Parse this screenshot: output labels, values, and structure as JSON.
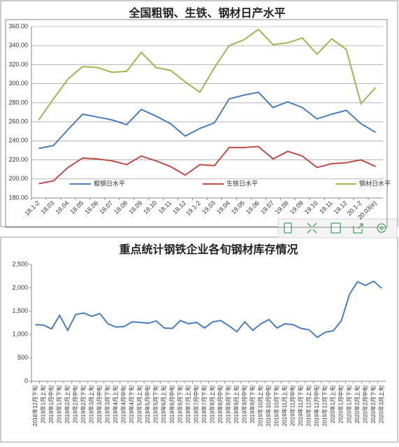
{
  "chart_data": [
    {
      "type": "line",
      "title": "全国粗钢、生铁、钢材日产水平",
      "categories": [
        "18.1-2",
        "18.03",
        "18.04",
        "18.05",
        "18.06",
        "18.07",
        "18.08",
        "18.09",
        "18.10",
        "18.11",
        "18.12",
        "19.1-2",
        "19.03",
        "19.04",
        "19.05",
        "19.06",
        "19.07",
        "19.08",
        "19.09",
        "19.10",
        "19.11",
        "19.12",
        "20.1-2",
        "20.03(e)"
      ],
      "series": [
        {
          "name": "粗钢日水平",
          "color": "#4a7ebb",
          "values": [
            232,
            235,
            252,
            268,
            265,
            262,
            257,
            273,
            266,
            258,
            245,
            253,
            259,
            284,
            288,
            291,
            275,
            281,
            275,
            263,
            268,
            272,
            258,
            249
          ]
        },
        {
          "name": "生铁日水平",
          "color": "#be4b48",
          "values": [
            195,
            198,
            212,
            222,
            221,
            219,
            215,
            224,
            219,
            213,
            204,
            215,
            214,
            233,
            233,
            234,
            221,
            229,
            224,
            212,
            216,
            217,
            220,
            213
          ]
        },
        {
          "name": "钢材日水平",
          "color": "#98b954",
          "values": [
            262,
            284,
            305,
            318,
            317,
            312,
            313,
            333,
            317,
            314,
            302,
            291,
            317,
            340,
            346,
            357,
            341,
            343,
            348,
            331,
            347,
            336,
            279,
            296
          ]
        }
      ],
      "ylim": [
        180,
        360
      ],
      "yticks": [
        {
          "value": 180,
          "label": "180.00"
        },
        {
          "value": 200,
          "label": "200.00"
        },
        {
          "value": 220,
          "label": "220.00"
        },
        {
          "value": 240,
          "label": "240.00"
        },
        {
          "value": 260,
          "label": "260.00"
        },
        {
          "value": 280,
          "label": "280.00"
        },
        {
          "value": 300,
          "label": "300.00"
        },
        {
          "value": 320,
          "label": "320.00"
        },
        {
          "value": 340,
          "label": "340.00"
        },
        {
          "value": 360,
          "label": "360.00"
        }
      ],
      "grid": true,
      "legend": "bottom"
    },
    {
      "type": "line",
      "title": "重点统计钢铁企业各旬钢材库存情况",
      "categories": [
        "2018年12月下旬",
        "2019年1月上旬",
        "2019年1月中旬",
        "2019年1月下旬",
        "2019年2月上旬",
        "2019年2月中旬",
        "2019年2月下旬",
        "2019年3月上旬",
        "2019年3月中旬",
        "2019年3月下旬",
        "2019年4月上旬",
        "2019年4月中旬",
        "2019年4月下旬",
        "2019年5月上旬",
        "2019年5月中旬",
        "2019年5月下旬",
        "2019年6月上旬",
        "2019年6月中旬",
        "2019年6月下旬",
        "2019年7月上旬",
        "2019年7月中旬",
        "2019年7月下旬",
        "2019年8月上旬",
        "2019年8月中旬",
        "2019年8月下旬",
        "2019年9月上旬",
        "2019年9月中旬",
        "2019年9月下旬",
        "2019年10月上旬",
        "2019年10月中旬",
        "2019年10月下旬",
        "2019年11月上旬",
        "2019年11月中旬",
        "2019年11月下旬",
        "2019年12月上旬",
        "2019年12月中旬",
        "2019年12月下旬",
        "2020年1月上旬",
        "2020年1月中旬",
        "2020年1月下旬",
        "2020年2月上旬",
        "2020年2月中旬",
        "2020年2月下旬",
        "2020年3月上旬"
      ],
      "values": [
        1210,
        1200,
        1120,
        1410,
        1090,
        1430,
        1460,
        1390,
        1450,
        1230,
        1160,
        1170,
        1270,
        1260,
        1240,
        1290,
        1140,
        1130,
        1300,
        1230,
        1260,
        1140,
        1270,
        1300,
        1190,
        1060,
        1270,
        1090,
        1230,
        1320,
        1140,
        1230,
        1210,
        1130,
        1100,
        940,
        1050,
        1080,
        1300,
        1860,
        2130,
        2050,
        2140,
        1990
      ],
      "color": "#4a7ebb",
      "ylim": [
        0,
        2500
      ],
      "yticks": [
        0,
        500,
        {
          "value": 1000,
          "label": "1,000"
        },
        {
          "value": 1500,
          "label": "1,500"
        },
        {
          "value": 2000,
          "label": "2,000"
        },
        {
          "value": 2500,
          "label": "2,500"
        }
      ],
      "grid": false
    }
  ]
}
